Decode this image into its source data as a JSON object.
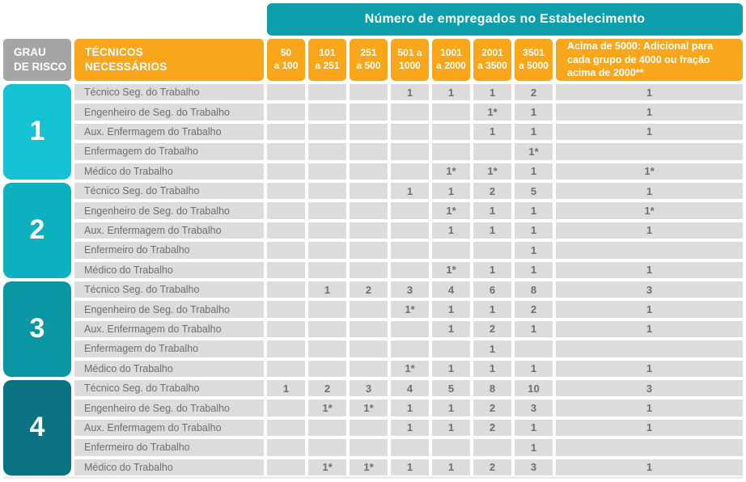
{
  "colors": {
    "banner_teal": "#0D9EAC",
    "header_orange": "#F9A61B",
    "header_gray": "#A5A5A5",
    "cell_gray": "#DCDCDC",
    "text_gray": "#6E6E6E",
    "risk_level_colors": [
      "#14C2D2",
      "#0CB0BF",
      "#0B96A4",
      "#0A7280"
    ]
  },
  "chart_data": {
    "type": "table",
    "title": "Número de empregados no Estabelecimento",
    "corner_header": "GRAU\nDE RISCO",
    "row_header": "TÉCNICOS\nNECESSÁRIOS",
    "columns": [
      "50\na 100",
      "101\na 251",
      "251\na 500",
      "501 a\n1000",
      "1001\na 2000",
      "2001\na 3500",
      "3501\na 5000"
    ],
    "above_column": "Acima de 5000: Adicional para cada grupo de 4000 ou fração acima de 2000**",
    "groups": [
      {
        "risk": "1",
        "color": "#14C2D2",
        "rows": [
          {
            "label": "Técnico Seg. do Trabalho",
            "values": [
              "",
              "",
              "",
              "1",
              "1",
              "1",
              "2",
              "1"
            ]
          },
          {
            "label": "Engenheiro de Seg. do Trabalho",
            "values": [
              "",
              "",
              "",
              "",
              "",
              "1*",
              "1",
              "1"
            ]
          },
          {
            "label": "Aux. Enfermagem do Trabalho",
            "values": [
              "",
              "",
              "",
              "",
              "",
              "1",
              "1",
              "1"
            ]
          },
          {
            "label": "Enfermagem do Trabalho",
            "values": [
              "",
              "",
              "",
              "",
              "",
              "",
              "1*",
              ""
            ]
          },
          {
            "label": "Médico do Trabalho",
            "values": [
              "",
              "",
              "",
              "",
              "1*",
              "1*",
              "1",
              "1*"
            ]
          }
        ]
      },
      {
        "risk": "2",
        "color": "#0CB0BF",
        "rows": [
          {
            "label": "Técnico Seg. do Trabalho",
            "values": [
              "",
              "",
              "",
              "1",
              "1",
              "2",
              "5",
              "1"
            ]
          },
          {
            "label": "Engenheiro de Seg. do Trabalho",
            "values": [
              "",
              "",
              "",
              "",
              "1*",
              "1",
              "1",
              "1*"
            ]
          },
          {
            "label": "Aux. Enfermagem do Trabalho",
            "values": [
              "",
              "",
              "",
              "",
              "1",
              "1",
              "1",
              "1"
            ]
          },
          {
            "label": "Enfermeiro do Trabalho",
            "values": [
              "",
              "",
              "",
              "",
              "",
              "",
              "1",
              ""
            ]
          },
          {
            "label": "Médico do Trabalho",
            "values": [
              "",
              "",
              "",
              "",
              "1*",
              "1",
              "1",
              "1"
            ]
          }
        ]
      },
      {
        "risk": "3",
        "color": "#0B96A4",
        "rows": [
          {
            "label": "Técnico Seg. do Trabalho",
            "values": [
              "",
              "1",
              "2",
              "3",
              "4",
              "6",
              "8",
              "3"
            ]
          },
          {
            "label": "Engenheiro de Seg. do Trabalho",
            "values": [
              "",
              "",
              "",
              "1*",
              "1",
              "1",
              "2",
              "1"
            ]
          },
          {
            "label": "Aux. Enfermagem do Trabalho",
            "values": [
              "",
              "",
              "",
              "",
              "1",
              "2",
              "1",
              "1"
            ]
          },
          {
            "label": "Enfermagem do Trabalho",
            "values": [
              "",
              "",
              "",
              "",
              "",
              "1",
              "",
              ""
            ]
          },
          {
            "label": "Médico do Trabalho",
            "values": [
              "",
              "",
              "",
              "1*",
              "1",
              "1",
              "1",
              "1"
            ]
          }
        ]
      },
      {
        "risk": "4",
        "color": "#0A7280",
        "rows": [
          {
            "label": "Técnico Seg. do Trabalho",
            "values": [
              "1",
              "2",
              "3",
              "4",
              "5",
              "8",
              "10",
              "3"
            ]
          },
          {
            "label": "Engenheiro de Seg. do Trabalho",
            "values": [
              "",
              "1*",
              "1*",
              "1",
              "1",
              "2",
              "3",
              "1"
            ]
          },
          {
            "label": "Aux. Enfermagem do Trabalho",
            "values": [
              "",
              "",
              "",
              "1",
              "1",
              "2",
              "1",
              "1"
            ]
          },
          {
            "label": "Enfermeiro do Trabalho",
            "values": [
              "",
              "",
              "",
              "",
              "",
              "",
              "1",
              ""
            ]
          },
          {
            "label": "Médico do Trabalho",
            "values": [
              "",
              "1*",
              "1*",
              "1",
              "1",
              "2",
              "3",
              "1"
            ]
          }
        ]
      }
    ]
  }
}
